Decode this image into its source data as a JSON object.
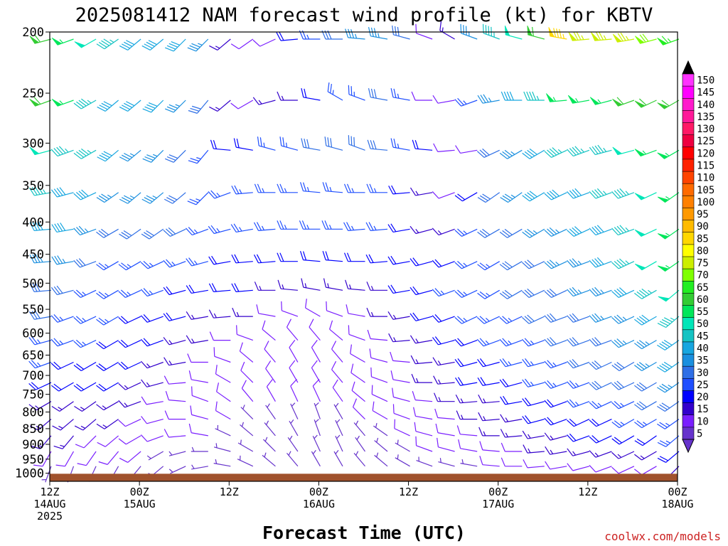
{
  "title": "2025081412 NAM forecast wind profile (kt) for KBTV",
  "credit": "coolwx.com/models",
  "colors": {
    "ground": "#a0522d"
  },
  "chart_data": {
    "type": "wind-barb time-height",
    "title": "2025081412 NAM forecast wind profile (kt) for KBTV",
    "xlabel": "Forecast Time (UTC)",
    "ylabel": "",
    "pressure_levels_mb": [
      200,
      250,
      300,
      350,
      400,
      450,
      500,
      550,
      600,
      650,
      700,
      750,
      800,
      850,
      900,
      950,
      1000
    ],
    "y_ticks": [
      "200",
      "250",
      "300",
      "350",
      "400",
      "450",
      "500",
      "550",
      "600",
      "650",
      "700",
      "750",
      "800",
      "850",
      "900",
      "950",
      "1000"
    ],
    "xlim_hours": [
      0,
      84
    ],
    "time_step_hours": 3,
    "x_ticks": [
      {
        "hour": 0,
        "time": "12Z",
        "date": "14AUG",
        "year": "2025"
      },
      {
        "hour": 12,
        "time": "00Z",
        "date": "15AUG",
        "year": ""
      },
      {
        "hour": 24,
        "time": "12Z",
        "date": "",
        "year": ""
      },
      {
        "hour": 36,
        "time": "00Z",
        "date": "16AUG",
        "year": ""
      },
      {
        "hour": 48,
        "time": "12Z",
        "date": "",
        "year": ""
      },
      {
        "hour": 60,
        "time": "00Z",
        "date": "17AUG",
        "year": ""
      },
      {
        "hour": 72,
        "time": "12Z",
        "date": "",
        "year": ""
      },
      {
        "hour": 84,
        "time": "00Z",
        "date": "18AUG",
        "year": ""
      }
    ],
    "colorbar": {
      "units": "kt",
      "levels": [
        5,
        10,
        15,
        20,
        25,
        30,
        35,
        40,
        45,
        50,
        55,
        60,
        65,
        70,
        75,
        80,
        85,
        90,
        95,
        100,
        105,
        110,
        115,
        120,
        125,
        130,
        135,
        140,
        145,
        150
      ],
      "colors": [
        "#6633cc",
        "#7a1fff",
        "#3300cc",
        "#0000ff",
        "#1f4fff",
        "#2f6fe6",
        "#1a8fdf",
        "#17a6e0",
        "#15c3c3",
        "#00e6b8",
        "#00e65a",
        "#33cc33",
        "#22ee22",
        "#7fff00",
        "#ccee00",
        "#ffff00",
        "#ffd700",
        "#ffbb00",
        "#ff9900",
        "#ff8000",
        "#ff6a00",
        "#ff4400",
        "#ff2200",
        "#ff0000",
        "#ee0040",
        "#ff1a66",
        "#ff1a99",
        "#ff1acc",
        "#ff00ff",
        "#ff33ff"
      ]
    },
    "surface_pressure_mb": [
      1002,
      1002,
      1002,
      1002,
      1002,
      1002,
      1002,
      1002,
      1002,
      1002,
      1002,
      1002,
      1002,
      1002,
      1002,
      1002,
      1002,
      1002,
      1002,
      1002,
      1002,
      1002,
      1002,
      1002,
      1002,
      1002,
      1002,
      1002,
      1002
    ],
    "wind_profiles": [
      {
        "level": 200,
        "dir": [
          255,
          250,
          240,
          235,
          230,
          230,
          225,
          225,
          230,
          235,
          245,
          265,
          270,
          270,
          275,
          280,
          285,
          290,
          300,
          290,
          290,
          285,
          285,
          280,
          265,
          265,
          260,
          255,
          250
        ],
        "speed": [
          60,
          55,
          50,
          45,
          40,
          40,
          40,
          35,
          15,
          10,
          10,
          20,
          25,
          30,
          35,
          35,
          30,
          10,
          15,
          35,
          45,
          50,
          60,
          85,
          75,
          75,
          75,
          70,
          65
        ]
      },
      {
        "level": 250,
        "dir": [
          250,
          250,
          240,
          230,
          230,
          225,
          225,
          220,
          230,
          240,
          255,
          270,
          280,
          300,
          290,
          280,
          280,
          270,
          260,
          250,
          260,
          270,
          270,
          265,
          260,
          255,
          250,
          245,
          240
        ],
        "speed": [
          60,
          55,
          45,
          40,
          40,
          40,
          35,
          30,
          15,
          10,
          15,
          15,
          20,
          25,
          25,
          30,
          25,
          10,
          10,
          25,
          35,
          40,
          45,
          55,
          55,
          55,
          60,
          60,
          60
        ]
      },
      {
        "level": 300,
        "dir": [
          255,
          250,
          240,
          230,
          230,
          225,
          225,
          220,
          275,
          280,
          285,
          285,
          280,
          285,
          290,
          275,
          280,
          275,
          265,
          260,
          245,
          240,
          240,
          245,
          250,
          255,
          255,
          250,
          240
        ],
        "speed": [
          50,
          45,
          45,
          40,
          35,
          35,
          30,
          25,
          20,
          20,
          25,
          25,
          30,
          30,
          30,
          30,
          25,
          20,
          10,
          10,
          30,
          35,
          40,
          45,
          45,
          45,
          50,
          55,
          55
        ]
      },
      {
        "level": 350,
        "dir": [
          260,
          255,
          245,
          235,
          230,
          230,
          230,
          225,
          250,
          265,
          270,
          270,
          275,
          275,
          270,
          270,
          265,
          260,
          250,
          240,
          235,
          235,
          240,
          245,
          250,
          250,
          250,
          245,
          235
        ],
        "speed": [
          45,
          40,
          40,
          35,
          35,
          35,
          30,
          25,
          25,
          25,
          25,
          25,
          25,
          25,
          25,
          25,
          20,
          15,
          10,
          20,
          30,
          35,
          40,
          40,
          40,
          45,
          45,
          50,
          55
        ]
      },
      {
        "level": 400,
        "dir": [
          265,
          260,
          250,
          240,
          235,
          235,
          245,
          250,
          255,
          260,
          265,
          270,
          270,
          270,
          265,
          265,
          260,
          255,
          250,
          245,
          240,
          240,
          240,
          245,
          245,
          250,
          250,
          245,
          235
        ],
        "speed": [
          40,
          40,
          35,
          30,
          30,
          30,
          30,
          25,
          25,
          25,
          25,
          25,
          25,
          25,
          25,
          25,
          20,
          15,
          15,
          25,
          30,
          30,
          35,
          35,
          40,
          40,
          45,
          50,
          55
        ]
      },
      {
        "level": 450,
        "dir": [
          265,
          260,
          250,
          240,
          240,
          245,
          250,
          255,
          260,
          265,
          265,
          270,
          275,
          275,
          270,
          265,
          260,
          255,
          250,
          245,
          240,
          240,
          245,
          245,
          250,
          250,
          245,
          240,
          235
        ],
        "speed": [
          35,
          35,
          30,
          25,
          25,
          25,
          25,
          25,
          20,
          20,
          20,
          20,
          20,
          20,
          20,
          20,
          20,
          20,
          20,
          25,
          25,
          30,
          30,
          35,
          35,
          40,
          45,
          50,
          55
        ]
      },
      {
        "level": 500,
        "dir": [
          265,
          255,
          245,
          240,
          245,
          250,
          255,
          260,
          265,
          265,
          270,
          275,
          280,
          280,
          275,
          270,
          260,
          255,
          250,
          245,
          240,
          240,
          245,
          245,
          250,
          250,
          245,
          240,
          230
        ],
        "speed": [
          30,
          30,
          25,
          25,
          25,
          25,
          20,
          20,
          20,
          20,
          15,
          15,
          15,
          15,
          15,
          15,
          20,
          20,
          25,
          25,
          25,
          30,
          30,
          30,
          35,
          35,
          40,
          45,
          50
        ]
      },
      {
        "level": 550,
        "dir": [
          260,
          250,
          245,
          240,
          245,
          250,
          255,
          260,
          265,
          270,
          280,
          290,
          300,
          290,
          280,
          270,
          260,
          255,
          250,
          245,
          245,
          245,
          245,
          250,
          250,
          250,
          245,
          240,
          230
        ],
        "speed": [
          30,
          25,
          25,
          25,
          20,
          20,
          20,
          15,
          15,
          15,
          10,
          10,
          10,
          10,
          10,
          15,
          15,
          20,
          20,
          25,
          25,
          25,
          30,
          30,
          30,
          35,
          35,
          40,
          45
        ]
      },
      {
        "level": 600,
        "dir": [
          255,
          250,
          245,
          240,
          245,
          250,
          255,
          260,
          270,
          290,
          310,
          320,
          320,
          310,
          290,
          275,
          265,
          260,
          255,
          250,
          250,
          250,
          250,
          250,
          250,
          250,
          245,
          240,
          235
        ],
        "speed": [
          25,
          25,
          25,
          20,
          20,
          20,
          15,
          15,
          10,
          10,
          10,
          10,
          10,
          10,
          10,
          10,
          15,
          15,
          20,
          20,
          25,
          25,
          25,
          30,
          30,
          30,
          35,
          35,
          40
        ]
      },
      {
        "level": 650,
        "dir": [
          250,
          245,
          240,
          240,
          245,
          250,
          260,
          270,
          290,
          310,
          320,
          330,
          330,
          320,
          300,
          285,
          275,
          265,
          260,
          255,
          255,
          255,
          255,
          250,
          250,
          245,
          240,
          240,
          235
        ],
        "speed": [
          25,
          20,
          20,
          20,
          20,
          15,
          15,
          10,
          10,
          10,
          10,
          10,
          10,
          10,
          10,
          10,
          10,
          15,
          15,
          20,
          20,
          25,
          25,
          25,
          30,
          30,
          30,
          35,
          40
        ]
      },
      {
        "level": 700,
        "dir": [
          245,
          240,
          240,
          240,
          245,
          255,
          265,
          280,
          300,
          315,
          325,
          330,
          330,
          320,
          305,
          290,
          280,
          270,
          265,
          260,
          260,
          255,
          255,
          250,
          250,
          245,
          245,
          240,
          235
        ],
        "speed": [
          20,
          20,
          20,
          20,
          15,
          15,
          10,
          10,
          10,
          10,
          10,
          10,
          10,
          10,
          10,
          10,
          10,
          15,
          15,
          20,
          20,
          20,
          25,
          25,
          25,
          30,
          30,
          30,
          35
        ]
      },
      {
        "level": 750,
        "dir": [
          240,
          235,
          235,
          240,
          250,
          260,
          275,
          290,
          305,
          320,
          330,
          335,
          335,
          325,
          310,
          295,
          285,
          275,
          270,
          265,
          265,
          260,
          255,
          250,
          250,
          245,
          245,
          240,
          235
        ],
        "speed": [
          15,
          15,
          15,
          15,
          15,
          10,
          10,
          10,
          10,
          10,
          10,
          10,
          10,
          10,
          10,
          10,
          10,
          10,
          15,
          15,
          15,
          20,
          20,
          20,
          25,
          25,
          25,
          30,
          30
        ]
      },
      {
        "level": 800,
        "dir": [
          230,
          230,
          230,
          235,
          245,
          255,
          270,
          285,
          300,
          315,
          325,
          335,
          340,
          330,
          315,
          300,
          290,
          280,
          275,
          270,
          265,
          260,
          255,
          250,
          245,
          245,
          240,
          240,
          235
        ],
        "speed": [
          15,
          15,
          15,
          15,
          10,
          10,
          10,
          10,
          10,
          5,
          5,
          5,
          5,
          5,
          10,
          10,
          10,
          10,
          10,
          15,
          15,
          15,
          20,
          20,
          20,
          20,
          25,
          25,
          25
        ]
      },
      {
        "level": 850,
        "dir": [
          220,
          220,
          225,
          230,
          240,
          250,
          265,
          280,
          295,
          310,
          320,
          330,
          340,
          335,
          320,
          305,
          295,
          285,
          280,
          275,
          270,
          265,
          260,
          255,
          250,
          245,
          240,
          235,
          230
        ],
        "speed": [
          15,
          15,
          10,
          10,
          10,
          10,
          10,
          10,
          5,
          5,
          5,
          5,
          5,
          5,
          5,
          5,
          10,
          10,
          10,
          10,
          15,
          15,
          15,
          15,
          20,
          20,
          20,
          20,
          25
        ]
      },
      {
        "level": 900,
        "dir": [
          210,
          210,
          215,
          220,
          230,
          240,
          255,
          270,
          285,
          300,
          315,
          325,
          335,
          335,
          325,
          310,
          300,
          290,
          285,
          280,
          275,
          270,
          265,
          260,
          255,
          250,
          245,
          240,
          230
        ],
        "speed": [
          10,
          10,
          10,
          10,
          10,
          5,
          5,
          5,
          5,
          5,
          5,
          5,
          5,
          5,
          5,
          5,
          5,
          10,
          10,
          10,
          10,
          10,
          15,
          15,
          15,
          15,
          15,
          15,
          20
        ]
      },
      {
        "level": 950,
        "dir": [
          200,
          200,
          205,
          210,
          220,
          230,
          245,
          260,
          280,
          295,
          310,
          320,
          330,
          330,
          320,
          310,
          300,
          290,
          285,
          280,
          275,
          270,
          265,
          260,
          255,
          250,
          245,
          240,
          225
        ],
        "speed": [
          5,
          5,
          5,
          5,
          5,
          5,
          5,
          5,
          5,
          5,
          5,
          5,
          5,
          5,
          5,
          5,
          5,
          5,
          5,
          5,
          10,
          10,
          10,
          10,
          10,
          10,
          10,
          10,
          15
        ]
      }
    ]
  }
}
